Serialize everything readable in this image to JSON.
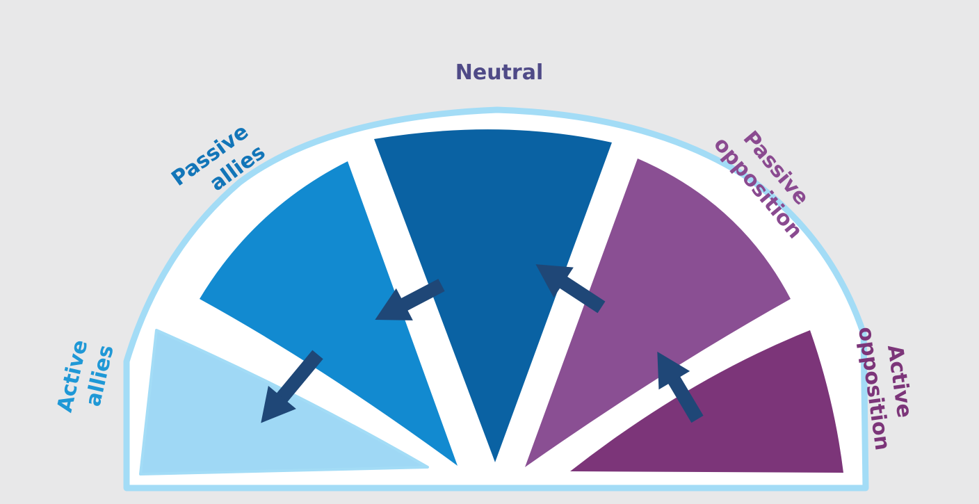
{
  "labels": {
    "neutral": "Neutral",
    "passive_allies": [
      "Passive",
      "allies"
    ],
    "active_allies": [
      "Active",
      "allies"
    ],
    "passive_opposition": [
      "Passive",
      "opposition"
    ],
    "active_opposition": [
      "Active",
      "opposition"
    ]
  },
  "colors": {
    "background": "#e8e8e9",
    "outline": "#a3dcf6",
    "active_allies": "#9fd8f5",
    "passive_allies": "#128ad0",
    "neutral": "#0a62a3",
    "passive_opposition": "#8a4f93",
    "active_opposition": "#7c3579",
    "arrow": "#1f4777",
    "label_neutral": "#4f4a87",
    "label_allies": "#1275b8",
    "label_active_allies": "#1f98d6",
    "label_opposition": "#8a4a90"
  }
}
